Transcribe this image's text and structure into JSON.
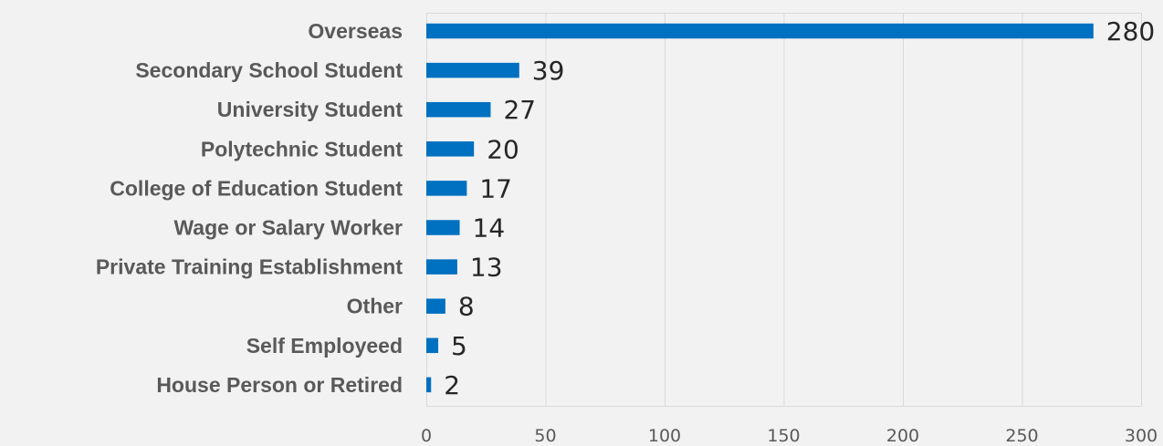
{
  "chart_data": {
    "type": "bar",
    "orientation": "horizontal",
    "categories": [
      "Overseas",
      "Secondary School Student",
      "University Student",
      "Polytechnic Student",
      "College of Education Student",
      "Wage or Salary Worker",
      "Private Training Establishment",
      "Other",
      "Self Employeed",
      "House Person or Retired"
    ],
    "values": [
      280,
      39,
      27,
      20,
      17,
      14,
      13,
      8,
      5,
      2
    ],
    "value_labels": [
      "280",
      "39",
      "27",
      "20",
      "17",
      "14",
      "13",
      "8",
      "5",
      "2"
    ],
    "xlim": [
      0,
      300
    ],
    "xticks": [
      0,
      50,
      100,
      150,
      200,
      250,
      300
    ],
    "xtick_labels": [
      "0",
      "50",
      "100",
      "150",
      "200",
      "250",
      "300"
    ],
    "grid": true,
    "legend": "none",
    "colors": {
      "bar": "#0070c0",
      "background": "#f2f2f2",
      "grid": "#d9d9d9"
    }
  }
}
